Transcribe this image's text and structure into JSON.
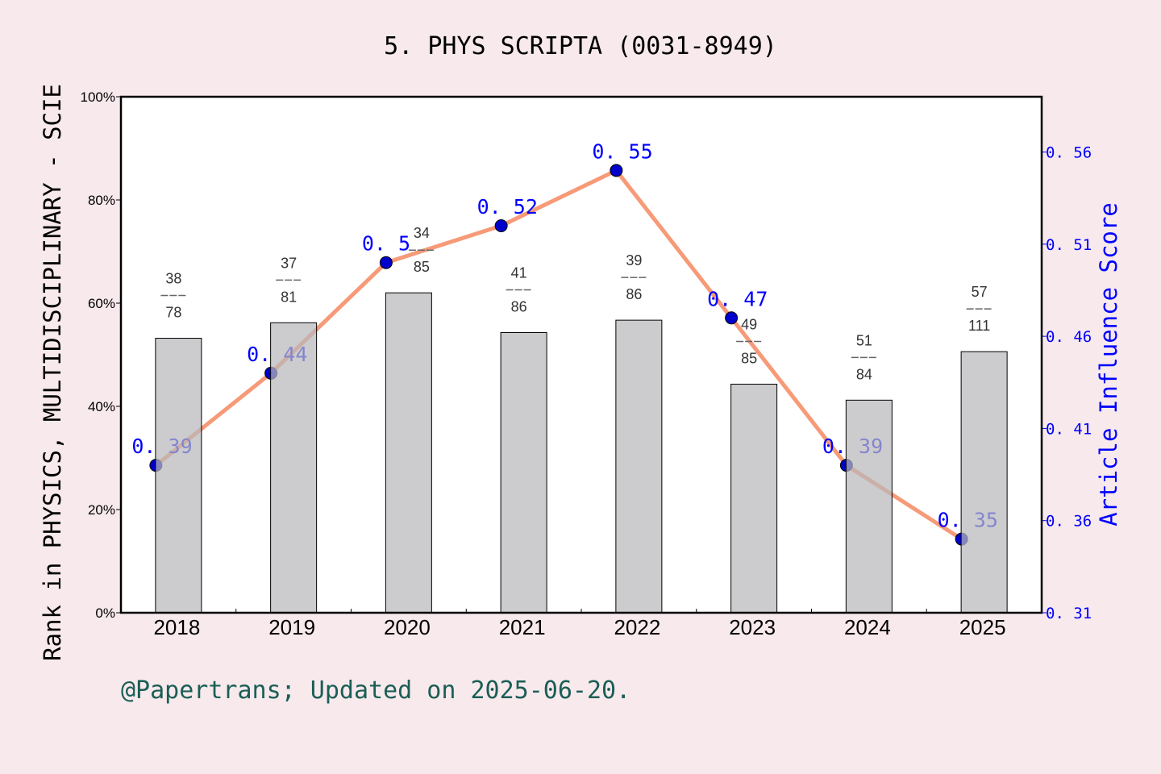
{
  "chart_data": {
    "type": "bar+line",
    "title": "5. PHYS SCRIPTA (0031-8949)",
    "ylabel": "Rank in PHYSICS, MULTIDISCIPLINARY - SCIE",
    "y2label": "Article Influence Score",
    "footer": "@Papertrans; Updated on 2025-06-20.",
    "categories": [
      "2018",
      "2019",
      "2020",
      "2021",
      "2022",
      "2023",
      "2024",
      "2025"
    ],
    "bars": {
      "values_percent": [
        53.2,
        56.2,
        62.0,
        54.3,
        56.7,
        44.3,
        41.2,
        50.6
      ],
      "rank": [
        "38",
        "37",
        "34",
        "41",
        "39",
        "49",
        "51",
        "57"
      ],
      "total": [
        "78",
        "81",
        "85",
        "86",
        "86",
        "85",
        "84",
        "111"
      ],
      "color": "#b8b9bb"
    },
    "line": {
      "values": [
        0.39,
        0.44,
        0.5,
        0.52,
        0.55,
        0.47,
        0.39,
        0.35
      ],
      "labels": [
        "0. 39",
        "0. 44",
        "0. 5",
        "0. 52",
        "0. 55",
        "0. 47",
        "0. 39",
        "0. 35"
      ],
      "line_color": "#f79a78",
      "marker_color": "#0000cc"
    },
    "ylim": [
      0,
      100
    ],
    "yticks": [
      "0%",
      "20%",
      "40%",
      "60%",
      "80%",
      "100%"
    ],
    "y2lim": [
      0.31,
      0.59
    ],
    "y2ticks": [
      "0. 31",
      "0. 36",
      "0. 41",
      "0. 46",
      "0. 51",
      "0. 56"
    ],
    "label_color": "#0000ff",
    "footer_color": "#1a5e55",
    "grid": false
  }
}
